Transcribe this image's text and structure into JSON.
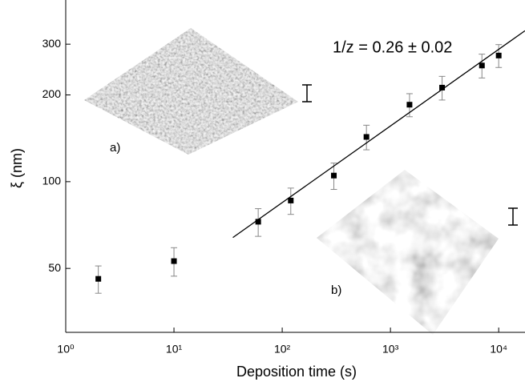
{
  "chart_data": {
    "type": "scatter",
    "xlabel": "Deposition time (s)",
    "ylabel": "ξ (nm)",
    "annotations": [
      "1/z = 0.26 ± 0.02",
      "a)",
      "b)"
    ],
    "xscale": "log",
    "yscale": "log",
    "xlim": [
      1,
      17500
    ],
    "ylim": [
      30,
      427
    ],
    "xticks": [
      {
        "value": 1,
        "label": "10⁰"
      },
      {
        "value": 10,
        "label": "10¹"
      },
      {
        "value": 100,
        "label": "10²"
      },
      {
        "value": 1000,
        "label": "10³"
      },
      {
        "value": 10000,
        "label": "10⁴"
      }
    ],
    "yticks": [
      50,
      100,
      200,
      300
    ],
    "series": [
      {
        "type": "scatter",
        "color": "#000000",
        "error_color": "#888888",
        "x": [
          2,
          10,
          60,
          120,
          300,
          600,
          1500,
          3000,
          7000,
          10000
        ],
        "values": [
          46,
          53,
          72.6,
          86,
          105,
          143,
          185,
          212,
          253,
          274
        ],
        "errors": [
          5,
          6,
          8,
          9,
          11,
          14,
          17,
          20,
          24,
          25
        ]
      },
      {
        "type": "line",
        "color": "#000000",
        "x": [
          35,
          17500
        ],
        "values": [
          64,
          334
        ]
      }
    ]
  }
}
